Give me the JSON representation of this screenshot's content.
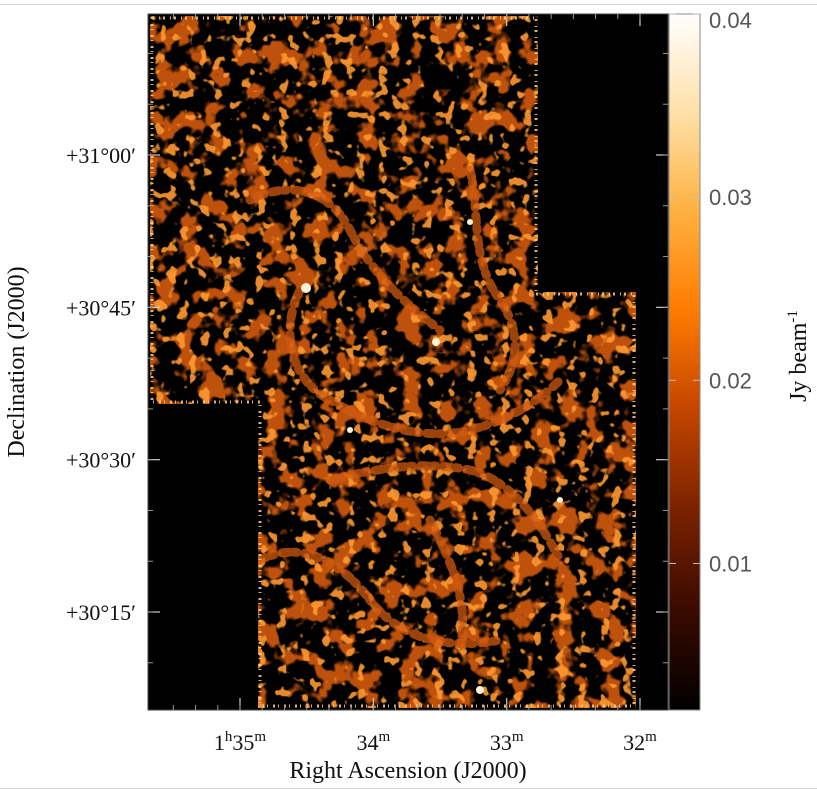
{
  "chart_data": {
    "type": "heatmap",
    "xlabel": "Right Ascension (J2000)",
    "ylabel": "Declination (J2000)",
    "colorbar_label": "Jy beam",
    "colorbar_label_exp": "-1",
    "x_ticks": [
      {
        "base": "1",
        "base_sup": "h",
        "value": "35",
        "value_sup": "m",
        "minutes": 35
      },
      {
        "base": "",
        "base_sup": "",
        "value": "34",
        "value_sup": "m",
        "minutes": 34
      },
      {
        "base": "",
        "base_sup": "",
        "value": "33",
        "value_sup": "m",
        "minutes": 33
      },
      {
        "base": "",
        "base_sup": "",
        "value": "32",
        "value_sup": "m",
        "minutes": 32
      }
    ],
    "y_ticks": [
      {
        "label": "+31°00′",
        "arcmin": 60
      },
      {
        "label": "+30°45′",
        "arcmin": 45
      },
      {
        "label": "+30°30′",
        "arcmin": 30
      },
      {
        "label": "+30°15′",
        "arcmin": 15
      }
    ],
    "colorbar": {
      "ticks": [
        "0.01",
        "0.02",
        "0.03",
        "0.04"
      ],
      "values": [
        0.01,
        0.02,
        0.03,
        0.04
      ],
      "range": [
        0.002,
        0.04
      ],
      "colormap": [
        "#000000",
        "#3a0a00",
        "#7a2200",
        "#c24400",
        "#ff7a00",
        "#ffb040",
        "#ffe0a8",
        "#ffffff"
      ]
    },
    "grid": false
  }
}
